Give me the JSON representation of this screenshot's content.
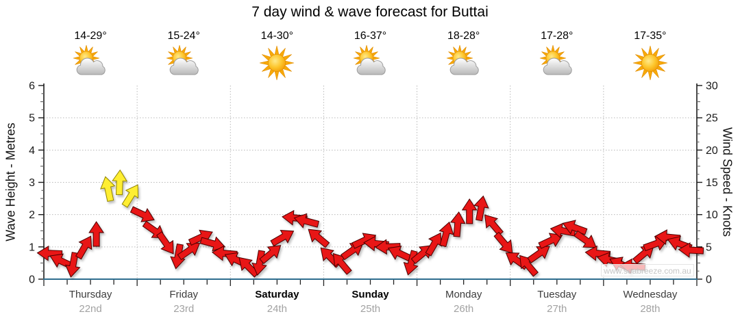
{
  "title": "7 day wind & wave forecast for Buttai",
  "watermark": "www.seabreeze.com.au",
  "axes": {
    "left_label": "Wave Height - Metres",
    "right_label": "Wind Speed - Knots",
    "left_ticks": [
      6,
      5,
      4,
      3,
      2,
      1,
      0
    ],
    "right_ticks": [
      30,
      25,
      20,
      15,
      10,
      5,
      0
    ],
    "left_range": [
      0,
      6
    ],
    "right_range": [
      0,
      30
    ]
  },
  "days": [
    {
      "name": "Thursday",
      "date": "22nd",
      "bold": false
    },
    {
      "name": "Friday",
      "date": "23rd",
      "bold": false
    },
    {
      "name": "Saturday",
      "date": "24th",
      "bold": true
    },
    {
      "name": "Sunday",
      "date": "25th",
      "bold": true
    },
    {
      "name": "Monday",
      "date": "26th",
      "bold": false
    },
    {
      "name": "Tuesday",
      "date": "27th",
      "bold": false
    },
    {
      "name": "Wednesday",
      "date": "28th",
      "bold": false
    }
  ],
  "forecast": [
    {
      "temp": "14-29°",
      "icon": "sun-cloud-icon"
    },
    {
      "temp": "15-24°",
      "icon": "sun-cloud-icon"
    },
    {
      "temp": "14-30°",
      "icon": "sun-icon"
    },
    {
      "temp": "16-37°",
      "icon": "sun-cloud-icon"
    },
    {
      "temp": "18-28°",
      "icon": "sun-cloud-icon"
    },
    {
      "temp": "17-28°",
      "icon": "sun-cloud-icon"
    },
    {
      "temp": "17-35°",
      "icon": "sun-icon"
    }
  ],
  "colors": {
    "arrow_red": "#e81313",
    "arrow_red_stroke": "#4a0000",
    "arrow_yellow": "#ffee33",
    "arrow_yellow_stroke": "#8f8200",
    "bottom_axis": "#2e6d8e",
    "grid": "#b8b8b8",
    "axis": "#1a1a1a",
    "tick_text": "#1a1a1a"
  },
  "chart_data": {
    "type": "wind-arrows",
    "title": "7 day wind & wave forecast for Buttai",
    "categories": [
      "Thursday 22nd",
      "Friday 23rd",
      "Saturday 24th",
      "Sunday 25th",
      "Monday 26th",
      "Tuesday 27th",
      "Wednesday 28th"
    ],
    "temperatures": [
      "14-29°",
      "15-24°",
      "14-30°",
      "16-37°",
      "18-28°",
      "17-28°",
      "17-35°"
    ],
    "points_per_day": 8,
    "interval_hours": 3,
    "ylabel_left": "Wave Height - Metres",
    "ylabel_right": "Wind Speed - Knots",
    "ylim_left_metres": [
      0,
      6
    ],
    "ylim_right_knots": [
      0,
      30
    ],
    "grid": true,
    "wave_height_metres": "flat ~0 along baseline (inland location)",
    "wind_speed_knots": [
      4.0,
      2.8,
      2.2,
      5.0,
      7.0,
      14.0,
      15.0,
      13.0,
      10.0,
      7.5,
      5.5,
      3.5,
      4.5,
      6.5,
      5.5,
      4.0,
      3.0,
      2.0,
      2.5,
      4.0,
      6.5,
      9.5,
      9.0,
      6.5,
      3.5,
      2.5,
      4.5,
      6.0,
      5.5,
      5.0,
      4.0,
      2.5,
      4.0,
      5.5,
      7.0,
      8.5,
      10.5,
      11.0,
      8.5,
      5.5,
      3.0,
      2.2,
      4.0,
      6.0,
      7.5,
      8.0,
      6.0,
      4.0,
      3.0,
      2.3,
      2.0,
      4.0,
      5.5,
      6.5,
      5.5,
      4.5
    ],
    "arrow_angles_deg_screen": [
      182,
      205,
      100,
      -60,
      -90,
      -102,
      -88,
      -58,
      25,
      35,
      55,
      100,
      -35,
      -25,
      15,
      185,
      205,
      225,
      100,
      -40,
      -30,
      185,
      195,
      220,
      225,
      230,
      -35,
      -25,
      185,
      178,
      205,
      105,
      -40,
      -60,
      -75,
      -85,
      -90,
      -80,
      -130,
      50,
      215,
      230,
      -35,
      -25,
      190,
      200,
      35,
      185,
      192,
      205,
      185,
      -40,
      -20,
      185,
      200,
      183
    ],
    "arrow_color_keys": [
      "red",
      "red",
      "red",
      "red",
      "red",
      "yellow",
      "yellow",
      "yellow",
      "red",
      "red",
      "red",
      "red",
      "red",
      "red",
      "red",
      "red",
      "red",
      "red",
      "red",
      "red",
      "red",
      "red",
      "red",
      "red",
      "red",
      "red",
      "red",
      "red",
      "red",
      "red",
      "red",
      "red",
      "red",
      "red",
      "red",
      "red",
      "red",
      "red",
      "red",
      "red",
      "red",
      "red",
      "red",
      "red",
      "red",
      "red",
      "red",
      "red",
      "red",
      "red",
      "red",
      "red",
      "red",
      "red",
      "red",
      "red"
    ]
  }
}
